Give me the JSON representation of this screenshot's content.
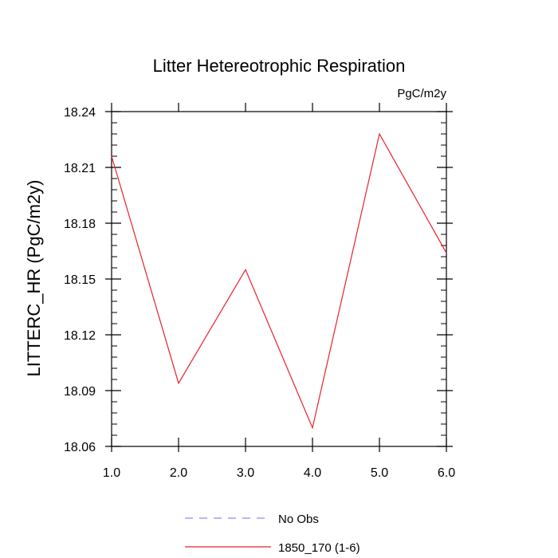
{
  "chart_data": {
    "type": "line",
    "title": "Litter Hetereotrophic Respiration",
    "units_label": "PgC/m2y",
    "xlabel": "",
    "ylabel": "LITTERC_HR  (PgC/m2y)",
    "xlim": [
      1.0,
      6.0
    ],
    "ylim": [
      18.06,
      18.24
    ],
    "x_ticks": [
      1.0,
      2.0,
      3.0,
      4.0,
      5.0,
      6.0
    ],
    "x_tick_labels": [
      "1.0",
      "2.0",
      "3.0",
      "4.0",
      "5.0",
      "6.0"
    ],
    "y_ticks": [
      18.06,
      18.09,
      18.12,
      18.15,
      18.18,
      18.21,
      18.24
    ],
    "y_tick_labels": [
      "18.06",
      "18.09",
      "18.12",
      "18.15",
      "18.18",
      "18.21",
      "18.24"
    ],
    "grid": false,
    "legend_position": "bottom-center",
    "series": [
      {
        "name": "1850_170 (1-6)",
        "color": "#e8212b",
        "style": "solid",
        "x": [
          1.0,
          2.0,
          3.0,
          4.0,
          5.0,
          6.0
        ],
        "values": [
          18.216,
          18.094,
          18.155,
          18.07,
          18.228,
          18.164
        ]
      }
    ],
    "legend": [
      {
        "label": "No Obs",
        "color": "#8a8aff",
        "style": "dashed"
      },
      {
        "label": "1850_170 (1-6)",
        "color": "#e8212b",
        "style": "solid"
      }
    ]
  }
}
